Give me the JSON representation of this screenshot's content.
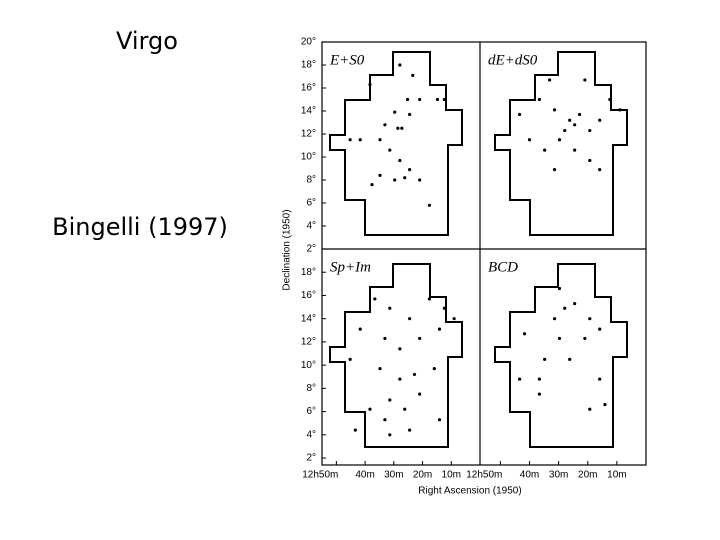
{
  "slide": {
    "title": "Virgo",
    "caption": "Bingelli (1997)"
  },
  "figure": {
    "xlabel": "Right Ascension (1950)",
    "ylabel": "Declination (1950)"
  },
  "chart_data": [
    {
      "type": "scatter",
      "title": "E+S0",
      "xlim": [
        55,
        0
      ],
      "ylim": [
        2,
        20
      ],
      "yticks": [
        {
          "value": 20,
          "label": "20°"
        },
        {
          "value": 18,
          "label": "18°"
        },
        {
          "value": 16,
          "label": "16°"
        },
        {
          "value": 14,
          "label": "14°"
        },
        {
          "value": 12,
          "label": "12°"
        },
        {
          "value": 10,
          "label": "10°"
        },
        {
          "value": 8,
          "label": "8°"
        },
        {
          "value": 6,
          "label": "6°"
        },
        {
          "value": 4,
          "label": "4°"
        },
        {
          "value": 2,
          "label": "2°"
        }
      ],
      "x": [
        27.9,
        23.4,
        38.3,
        25.2,
        29.7,
        21,
        14.8,
        24.5,
        33.1,
        28.6,
        27.2,
        41.7,
        34.8,
        31.4,
        27.9,
        24.5,
        34.8,
        29.7,
        26.2,
        21,
        37.6,
        17.6,
        45.2,
        12.4
      ],
      "y": [
        18,
        17.1,
        16.3,
        15,
        13.9,
        15,
        15,
        13.7,
        12.8,
        12.5,
        12.5,
        11.5,
        11.5,
        10.6,
        9.7,
        8.9,
        8.4,
        8,
        8.2,
        8,
        7.6,
        5.8,
        11.5,
        15
      ]
    },
    {
      "type": "scatter",
      "title": "dE+dS0",
      "xlim": [
        57,
        0
      ],
      "ylim": [
        2,
        20
      ],
      "x": [
        36.6,
        31.4,
        26.2,
        24.5,
        27.9,
        22.8,
        19.3,
        15.9,
        12.4,
        43.4,
        40,
        34.8,
        29.7,
        24.5,
        19.3,
        31.4,
        15.9,
        9,
        21,
        33.1
      ],
      "y": [
        15,
        14.1,
        13.2,
        12.8,
        12.3,
        13.7,
        12.3,
        13.2,
        15,
        13.7,
        11.5,
        10.6,
        11.5,
        10.6,
        9.7,
        8.9,
        8.9,
        14.1,
        16.7,
        16.7
      ]
    },
    {
      "type": "scatter",
      "title": "Sp+Im",
      "xlim": [
        55,
        0
      ],
      "ylim": [
        1.4,
        20
      ],
      "yticks": [
        {
          "value": 18,
          "label": "18°"
        },
        {
          "value": 16,
          "label": "16°"
        },
        {
          "value": 14,
          "label": "14°"
        },
        {
          "value": 12,
          "label": "12°"
        },
        {
          "value": 10,
          "label": "10°"
        },
        {
          "value": 8,
          "label": "8°"
        },
        {
          "value": 6,
          "label": "6°"
        },
        {
          "value": 4,
          "label": "4°"
        },
        {
          "value": 2,
          "label": "2°"
        }
      ],
      "xticks": [
        {
          "value": 50,
          "label": "12h50m"
        },
        {
          "value": 40,
          "label": "40m"
        },
        {
          "value": 30,
          "label": "30m"
        },
        {
          "value": 20,
          "label": "20m"
        },
        {
          "value": 10,
          "label": "10m"
        }
      ],
      "x": [
        36.6,
        31.4,
        24.5,
        17.6,
        12.4,
        41.7,
        33.1,
        27.9,
        21,
        14.1,
        9,
        45.2,
        34.8,
        27.9,
        22.8,
        15.9,
        31.4,
        26.2,
        21,
        38.3,
        43.4,
        33.1,
        24.5,
        14.1,
        31.4
      ],
      "y": [
        15.7,
        14.9,
        14,
        15.7,
        14.9,
        13.1,
        12.3,
        11.4,
        12.3,
        13.1,
        14,
        10.5,
        9.7,
        8.8,
        9.2,
        9.7,
        7,
        6.2,
        7.5,
        6.2,
        4.4,
        5.3,
        4.4,
        5.3,
        4
      ]
    },
    {
      "type": "scatter",
      "title": "BCD",
      "xlim": [
        57,
        0
      ],
      "ylim": [
        1.4,
        20
      ],
      "xticks": [
        {
          "value": 50,
          "label": "12h50m"
        },
        {
          "value": 40,
          "label": "40m"
        },
        {
          "value": 30,
          "label": "30m"
        },
        {
          "value": 20,
          "label": "20m"
        },
        {
          "value": 10,
          "label": "10m"
        }
      ],
      "x": [
        29.7,
        24.5,
        31.4,
        19.3,
        15.9,
        41.7,
        29.7,
        21,
        34.8,
        26.2,
        43.4,
        36.6,
        15.9,
        36.6,
        14.1,
        19.3,
        27.9
      ],
      "y": [
        16.6,
        15.3,
        14,
        14,
        13.1,
        12.7,
        12.3,
        12.3,
        10.5,
        10.5,
        8.8,
        8.8,
        8.8,
        7.5,
        6.6,
        6.2,
        14.9
      ]
    }
  ]
}
